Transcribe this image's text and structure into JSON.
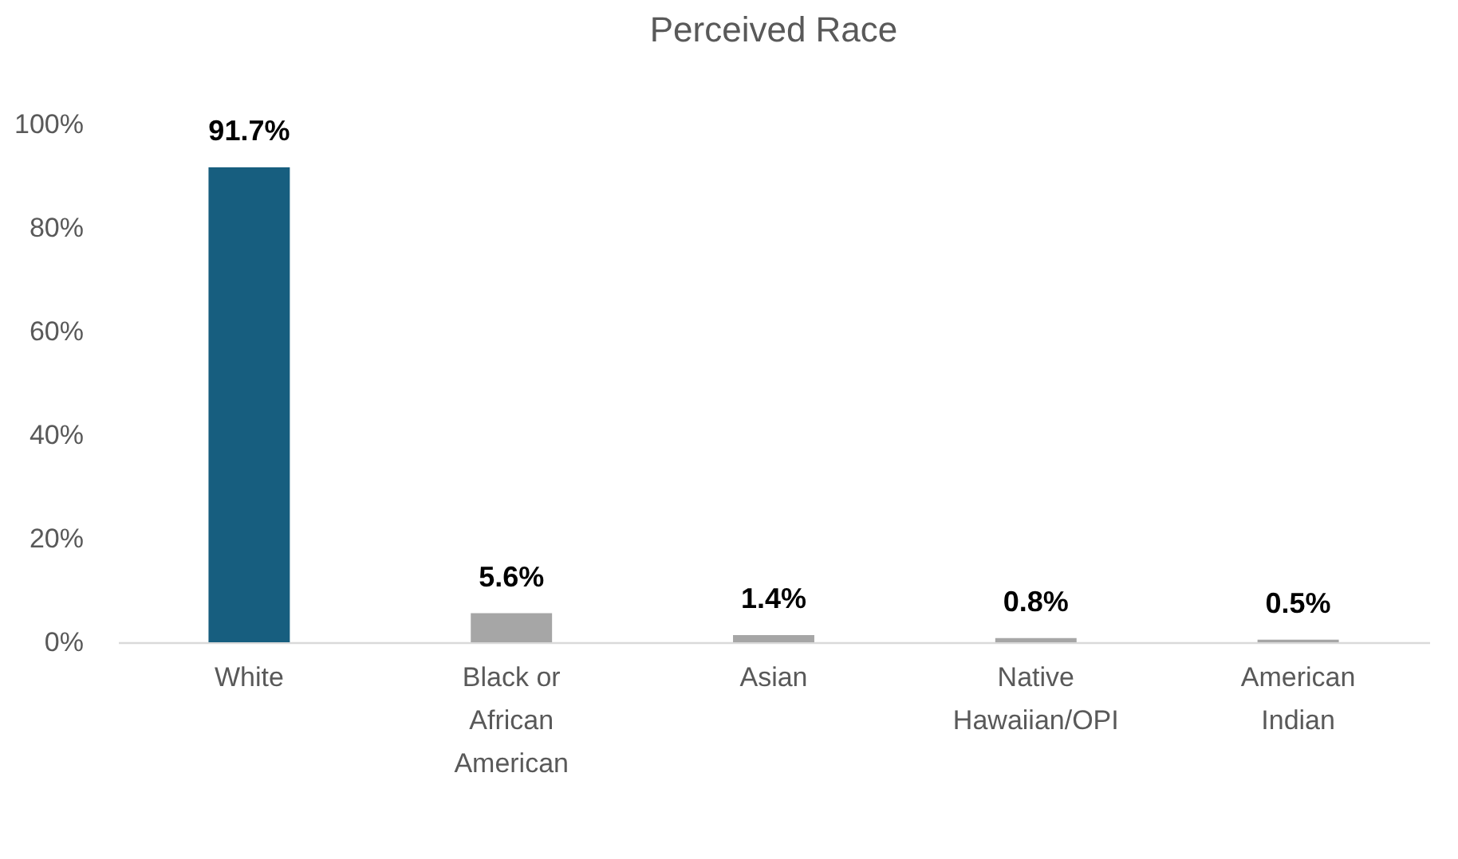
{
  "chart_data": {
    "type": "bar",
    "title": "Perceived Race",
    "categories": [
      "White",
      "Black or African American",
      "Asian",
      "Native Hawaiian/OPI",
      "American Indian"
    ],
    "values": [
      91.7,
      5.6,
      1.4,
      0.8,
      0.5
    ],
    "colors": [
      "#175e7f",
      "#a6a6a6",
      "#a6a6a6",
      "#a6a6a6",
      "#a6a6a6"
    ],
    "value_labels": [
      "91.7%",
      "5.6%",
      "1.4%",
      "0.8%",
      "0.5%"
    ],
    "ylim": [
      0,
      100
    ],
    "yticks": [
      {
        "value": 0,
        "label": "0%"
      },
      {
        "value": 20,
        "label": "20%"
      },
      {
        "value": 40,
        "label": "40%"
      },
      {
        "value": 60,
        "label": "60%"
      },
      {
        "value": 80,
        "label": "80%"
      },
      {
        "value": 100,
        "label": "100%"
      }
    ],
    "grid": false,
    "legend": false
  }
}
